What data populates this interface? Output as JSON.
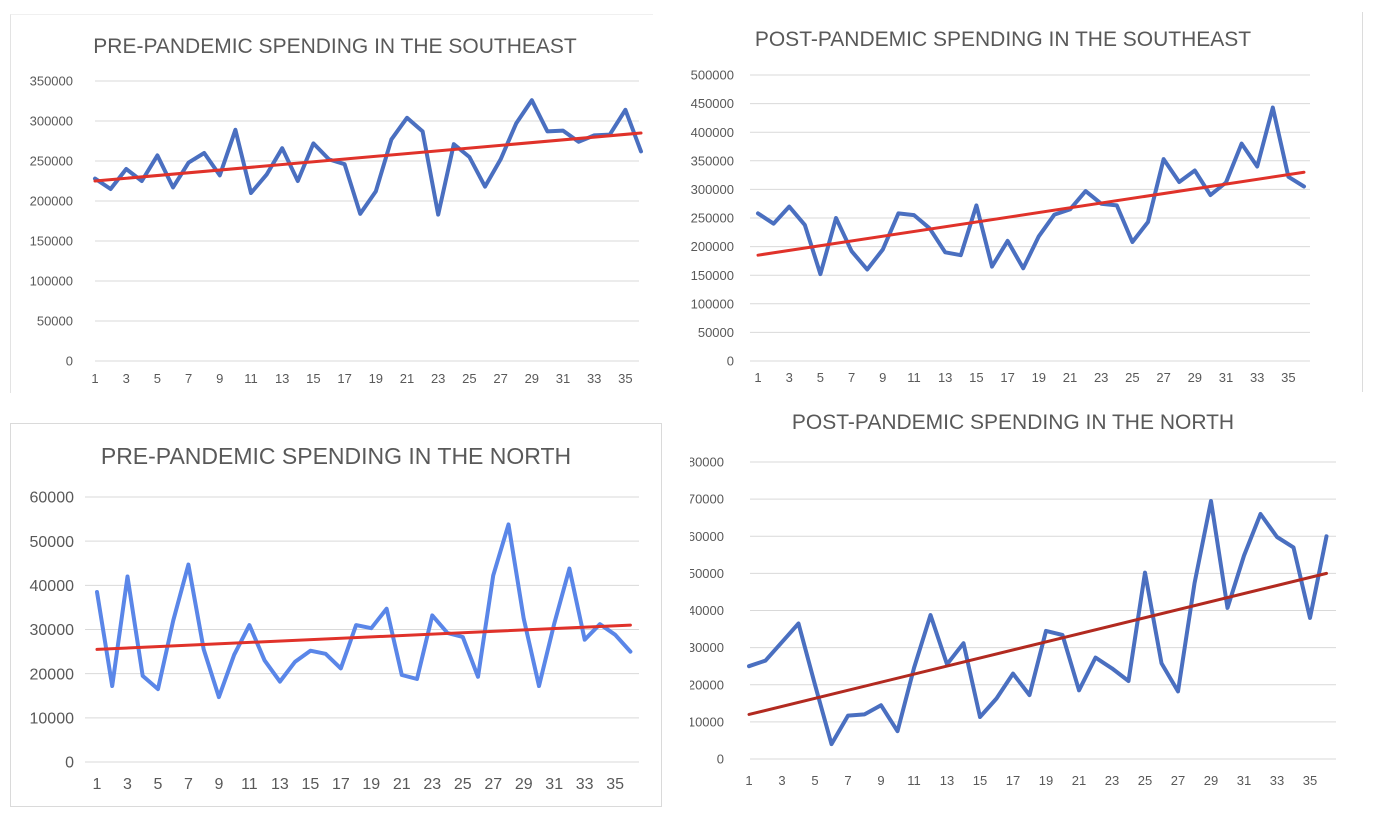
{
  "colors": {
    "series_blue": "#4a6fc0",
    "series_light_blue": "#5a86e8",
    "trend_red": "#e0322a",
    "trend_dark_red": "#b22a20",
    "grid": "#d9d9d9",
    "text": "#595959"
  },
  "chart_data": [
    {
      "id": "pre-southeast",
      "type": "line",
      "title": "PRE-PANDEMIC SPENDING IN THE SOUTHEAST",
      "x": [
        1,
        2,
        3,
        4,
        5,
        6,
        7,
        8,
        9,
        10,
        11,
        12,
        13,
        14,
        15,
        16,
        17,
        18,
        19,
        20,
        21,
        22,
        23,
        24,
        25,
        26,
        27,
        28,
        29,
        30,
        31,
        32,
        33,
        34,
        35,
        36
      ],
      "x_tick_labels": [
        "1",
        "3",
        "5",
        "7",
        "9",
        "11",
        "13",
        "15",
        "17",
        "19",
        "21",
        "23",
        "25",
        "27",
        "29",
        "31",
        "33",
        "35"
      ],
      "y_tick_labels": [
        "0",
        "50000",
        "100000",
        "150000",
        "200000",
        "250000",
        "300000",
        "350000"
      ],
      "ylim": [
        0,
        350000
      ],
      "grid": true,
      "series": [
        {
          "values": [
            228000,
            215000,
            240000,
            225000,
            257000,
            217000,
            248000,
            260000,
            232000,
            289000,
            210000,
            233000,
            266000,
            225000,
            272000,
            252000,
            246000,
            184000,
            212000,
            277000,
            304000,
            287000,
            183000,
            271000,
            255000,
            218000,
            252000,
            297000,
            326000,
            287000,
            288000,
            274000,
            282000,
            283000,
            314000,
            262000
          ]
        }
      ],
      "trendline": {
        "start": 225000,
        "end": 285000
      },
      "style": {
        "line_color": "#4a6fc0",
        "trend_color": "#e0322a"
      }
    },
    {
      "id": "post-southeast",
      "type": "line",
      "title": "POST-PANDEMIC SPENDING IN THE SOUTHEAST",
      "x": [
        1,
        2,
        3,
        4,
        5,
        6,
        7,
        8,
        9,
        10,
        11,
        12,
        13,
        14,
        15,
        16,
        17,
        18,
        19,
        20,
        21,
        22,
        23,
        24,
        25,
        26,
        27,
        28,
        29,
        30,
        31,
        32,
        33,
        34,
        35,
        36
      ],
      "x_tick_labels": [
        "1",
        "3",
        "5",
        "7",
        "9",
        "11",
        "13",
        "15",
        "17",
        "19",
        "21",
        "23",
        "25",
        "27",
        "29",
        "31",
        "33",
        "35"
      ],
      "y_tick_labels": [
        "0",
        "50000",
        "100000",
        "150000",
        "200000",
        "250000",
        "300000",
        "350000",
        "400000",
        "450000",
        "500000"
      ],
      "ylim": [
        0,
        500000
      ],
      "grid": true,
      "series": [
        {
          "values": [
            258000,
            240000,
            270000,
            238000,
            152000,
            250000,
            192000,
            160000,
            195000,
            258000,
            255000,
            232000,
            190000,
            185000,
            272000,
            165000,
            210000,
            162000,
            218000,
            256000,
            265000,
            297000,
            275000,
            272000,
            208000,
            243000,
            353000,
            313000,
            333000,
            290000,
            312000,
            380000,
            340000,
            443000,
            322000,
            305000
          ]
        }
      ],
      "trendline": {
        "start": 185000,
        "end": 330000
      },
      "style": {
        "line_color": "#4a6fc0",
        "trend_color": "#e0322a"
      }
    },
    {
      "id": "pre-north",
      "type": "line",
      "title": "PRE-PANDEMIC SPENDING IN THE NORTH",
      "x": [
        1,
        2,
        3,
        4,
        5,
        6,
        7,
        8,
        9,
        10,
        11,
        12,
        13,
        14,
        15,
        16,
        17,
        18,
        19,
        20,
        21,
        22,
        23,
        24,
        25,
        26,
        27,
        28,
        29,
        30,
        31,
        32,
        33,
        34,
        35,
        36
      ],
      "x_tick_labels": [
        "1",
        "3",
        "5",
        "7",
        "9",
        "11",
        "13",
        "15",
        "17",
        "19",
        "21",
        "23",
        "25",
        "27",
        "29",
        "31",
        "33",
        "35"
      ],
      "y_tick_labels": [
        "0",
        "10000",
        "20000",
        "30000",
        "40000",
        "50000",
        "60000"
      ],
      "ylim": [
        0,
        60000
      ],
      "grid": true,
      "series": [
        {
          "values": [
            38500,
            17200,
            42000,
            19500,
            16500,
            32000,
            44700,
            25500,
            14700,
            24300,
            31000,
            23000,
            18200,
            22700,
            25200,
            24500,
            21200,
            31000,
            30300,
            34700,
            19700,
            18800,
            33200,
            29200,
            28300,
            19300,
            42200,
            53800,
            32500,
            17200,
            31300,
            43800,
            27700,
            31200,
            28800,
            25000
          ]
        }
      ],
      "trendline": {
        "start": 25500,
        "end": 31000
      },
      "style": {
        "line_color": "#5a86e8",
        "trend_color": "#e0322a"
      }
    },
    {
      "id": "post-north",
      "type": "line",
      "title": "POST-PANDEMIC SPENDING IN THE NORTH",
      "x": [
        1,
        2,
        3,
        4,
        5,
        6,
        7,
        8,
        9,
        10,
        11,
        12,
        13,
        14,
        15,
        16,
        17,
        18,
        19,
        20,
        21,
        22,
        23,
        24,
        25,
        26,
        27,
        28,
        29,
        30,
        31,
        32,
        33,
        34,
        35,
        36
      ],
      "x_tick_labels": [
        "1",
        "3",
        "5",
        "7",
        "9",
        "11",
        "13",
        "15",
        "17",
        "19",
        "21",
        "23",
        "25",
        "27",
        "29",
        "31",
        "33",
        "35"
      ],
      "y_tick_labels": [
        "0",
        "10000",
        "20000",
        "30000",
        "40000",
        "50000",
        "60000",
        "70000",
        "80000"
      ],
      "ylim": [
        0,
        80000
      ],
      "grid": true,
      "series": [
        {
          "values": [
            25000,
            26500,
            31500,
            36500,
            20000,
            4000,
            11700,
            12000,
            14500,
            7500,
            24500,
            38800,
            25500,
            31200,
            11300,
            16300,
            23000,
            17200,
            34500,
            33400,
            18500,
            27300,
            24400,
            21000,
            50200,
            25800,
            18200,
            47300,
            69500,
            40700,
            54800,
            66000,
            59800,
            57000,
            38000,
            60000
          ]
        }
      ],
      "trendline": {
        "start": 12000,
        "end": 50000
      },
      "style": {
        "line_color": "#4a6fc0",
        "trend_color": "#b22a20"
      }
    }
  ]
}
